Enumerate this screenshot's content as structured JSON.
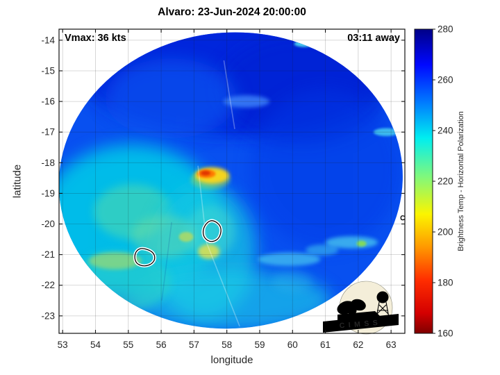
{
  "figure": {
    "title": "Alvaro: 23-Jun-2024 20:00:00",
    "annotation_left": "Vmax: 36 kts",
    "annotation_right": "03:11 away",
    "xlabel": "longitude",
    "ylabel": "latitude",
    "colorbar_label": "Brightness Temp - Horizontal Polarization",
    "logo_text": "CIMSS"
  },
  "storm": {
    "name": "Alvaro",
    "datetime": "23-Jun-2024 20:00:00",
    "vmax_kts": 36,
    "overpass_offset": "03:11 away"
  },
  "chart_data": {
    "type": "heatmap",
    "title": "Alvaro: 23-Jun-2024 20:00:00",
    "xlabel": "longitude",
    "ylabel": "latitude",
    "grid": true,
    "xlim": [
      52.89,
      63.42
    ],
    "ylim": [
      -23.57,
      -13.64
    ],
    "xticks": [
      53,
      54,
      55,
      56,
      57,
      58,
      59,
      60,
      61,
      62,
      63
    ],
    "yticks": [
      -14,
      -15,
      -16,
      -17,
      -18,
      -19,
      -20,
      -21,
      -22,
      -23
    ],
    "annotations": [
      {
        "text": "Vmax: 36 kts",
        "position": "top-left"
      },
      {
        "text": "03:11 away",
        "position": "top-right"
      }
    ],
    "colorbar": {
      "label": "Brightness Temp - Horizontal Polarization",
      "min": 160,
      "max": 280,
      "ticks": [
        160,
        180,
        200,
        220,
        240,
        260,
        280
      ],
      "colormap": "jet-reversed",
      "stops": [
        {
          "v": 280,
          "c": "#000087"
        },
        {
          "v": 266,
          "c": "#0008ff"
        },
        {
          "v": 251,
          "c": "#007cff"
        },
        {
          "v": 237,
          "c": "#00eef0"
        },
        {
          "v": 222,
          "c": "#7ef87e"
        },
        {
          "v": 207,
          "c": "#fbf500"
        },
        {
          "v": 194,
          "c": "#ff9800"
        },
        {
          "v": 181,
          "c": "#ff2d00"
        },
        {
          "v": 168,
          "c": "#d40000"
        },
        {
          "v": 160,
          "c": "#7f0000"
        }
      ]
    },
    "swath": {
      "center_lon": 58.12,
      "center_lat": -18.58,
      "radius_lon": 5.24,
      "radius_lat": 4.83,
      "tilt_deg": -5,
      "base_color": "#0850f0",
      "base_temp_K": 252
    },
    "features": [
      {
        "name": "deep-blue-top",
        "lon": 58.2,
        "lat": -15.1,
        "rx": 4.6,
        "ry": 2.0,
        "color": "#0224da",
        "opacity": 0.9,
        "soft": 4,
        "temp_K": 262
      },
      {
        "name": "deep-blue-top-right",
        "lon": 60.3,
        "lat": -15.6,
        "rx": 2.6,
        "ry": 1.8,
        "color": "#0120d2",
        "opacity": 0.6,
        "soft": 4,
        "temp_K": 264
      },
      {
        "name": "blue-upper-left",
        "lon": 56.3,
        "lat": -15.9,
        "rx": 2.0,
        "ry": 1.3,
        "color": "#0c5cf4",
        "opacity": 0.6,
        "soft": 4,
        "temp_K": 252
      },
      {
        "name": "deep-blue-right",
        "lon": 61.0,
        "lat": -18.2,
        "rx": 2.3,
        "ry": 2.6,
        "color": "#0338e6",
        "opacity": 0.5,
        "soft": 4,
        "temp_K": 258
      },
      {
        "name": "cyan-left-region",
        "lon": 55.1,
        "lat": -19.9,
        "rx": 2.8,
        "ry": 2.5,
        "color": "#00c8e8",
        "opacity": 0.9,
        "soft": 4,
        "temp_K": 238
      },
      {
        "name": "green-tint-left",
        "lon": 55.15,
        "lat": -19.6,
        "rx": 1.2,
        "ry": 0.9,
        "color": "#55dcaa",
        "opacity": 0.55,
        "soft": 3,
        "temp_K": 228
      },
      {
        "name": "cyan-center-low",
        "lon": 57.3,
        "lat": -20.9,
        "rx": 1.6,
        "ry": 2.2,
        "color": "#16c6e2",
        "opacity": 0.75,
        "soft": 4,
        "temp_K": 238
      },
      {
        "name": "greenish-mid",
        "lon": 56.1,
        "lat": -20.4,
        "rx": 1.0,
        "ry": 0.7,
        "color": "#7de09a",
        "opacity": 0.4,
        "soft": 3,
        "temp_K": 226
      },
      {
        "name": "cyan-bottom-band",
        "lon": 58.1,
        "lat": -22.5,
        "rx": 3.1,
        "ry": 1.0,
        "color": "#1ecee6",
        "opacity": 0.65,
        "soft": 4,
        "temp_K": 240
      },
      {
        "name": "cyan-bottom-left",
        "lon": 54.7,
        "lat": -21.9,
        "rx": 1.6,
        "ry": 1.0,
        "color": "#2ed0c8",
        "opacity": 0.6,
        "soft": 3,
        "temp_K": 236
      },
      {
        "name": "yellowgreen-left-streak",
        "lon": 54.6,
        "lat": -21.2,
        "rx": 0.8,
        "ry": 0.28,
        "color": "#b4dc5e",
        "opacity": 0.6,
        "soft": 2,
        "temp_K": 218
      },
      {
        "name": "yellow-dot-left-low",
        "lon": 54.66,
        "lat": -22.55,
        "rx": 0.22,
        "ry": 0.14,
        "color": "#c4dc4a",
        "opacity": 0.8,
        "soft": 1,
        "temp_K": 215
      },
      {
        "name": "cyan-near-contour",
        "lon": 57.5,
        "lat": -20.25,
        "rx": 0.75,
        "ry": 0.85,
        "color": "#48d8ce",
        "opacity": 0.5,
        "soft": 3,
        "temp_K": 232
      },
      {
        "name": "yellow-spot-mid",
        "lon": 57.45,
        "lat": -20.9,
        "rx": 0.33,
        "ry": 0.24,
        "color": "#e2e04e",
        "opacity": 0.85,
        "soft": 2,
        "temp_K": 212
      },
      {
        "name": "yellow-dot-mid",
        "lon": 56.76,
        "lat": -20.42,
        "rx": 0.22,
        "ry": 0.16,
        "color": "#c8dc50",
        "opacity": 0.7,
        "soft": 1,
        "temp_K": 215
      },
      {
        "name": "green-fringe-hotspot",
        "lon": 57.5,
        "lat": -18.55,
        "rx": 0.6,
        "ry": 0.32,
        "color": "#90dc60",
        "opacity": 0.5,
        "soft": 2,
        "temp_K": 222
      },
      {
        "name": "hotspot-yellow-halo",
        "lon": 57.55,
        "lat": -18.42,
        "rx": 0.52,
        "ry": 0.27,
        "color": "#ffd818",
        "opacity": 0.95,
        "soft": 2,
        "temp_K": 205
      },
      {
        "name": "hotspot-orange",
        "lon": 57.38,
        "lat": -18.36,
        "rx": 0.28,
        "ry": 0.14,
        "color": "#ff7a00",
        "opacity": 1,
        "soft": 1,
        "temp_K": 196
      },
      {
        "name": "hotspot-red-core",
        "lon": 57.35,
        "lat": -18.34,
        "rx": 0.15,
        "ry": 0.08,
        "color": "#e03400",
        "opacity": 1,
        "soft": 1,
        "temp_K": 186
      },
      {
        "name": "lightblue-wisp",
        "lon": 58.6,
        "lat": -16.0,
        "rx": 0.7,
        "ry": 0.2,
        "color": "#3f86fa",
        "opacity": 0.8,
        "soft": 2,
        "temp_K": 248
      },
      {
        "name": "cyan-chain-low",
        "lon": 59.9,
        "lat": -21.15,
        "rx": 0.95,
        "ry": 0.22,
        "color": "#55dff0",
        "opacity": 0.6,
        "soft": 2,
        "temp_K": 242
      },
      {
        "name": "cyan-chain-mid",
        "lon": 60.9,
        "lat": -20.85,
        "rx": 0.5,
        "ry": 0.18,
        "color": "#48d4ee",
        "opacity": 0.5,
        "soft": 2,
        "temp_K": 242
      },
      {
        "name": "cyan-chain-up",
        "lon": 61.8,
        "lat": -20.6,
        "rx": 0.8,
        "ry": 0.2,
        "color": "#55dff0",
        "opacity": 0.65,
        "soft": 2,
        "temp_K": 240
      },
      {
        "name": "green-dot-right",
        "lon": 62.1,
        "lat": -20.64,
        "rx": 0.15,
        "ry": 0.1,
        "color": "#8ae04e",
        "opacity": 0.9,
        "soft": 1,
        "temp_K": 222
      },
      {
        "name": "cyan-streak-right-edge",
        "lon": 62.85,
        "lat": -17.0,
        "rx": 0.38,
        "ry": 0.13,
        "color": "#4cd8f0",
        "opacity": 0.8,
        "soft": 1,
        "temp_K": 240
      },
      {
        "name": "cyan-streak-top-edge",
        "lon": 60.35,
        "lat": -14.12,
        "rx": 0.3,
        "ry": 0.1,
        "color": "#55e8f0",
        "opacity": 0.85,
        "soft": 1,
        "temp_K": 240
      },
      {
        "name": "faint-cyan-lower-right",
        "lon": 60.0,
        "lat": -21.9,
        "rx": 0.6,
        "ry": 0.35,
        "color": "#2fb9e9",
        "opacity": 0.35,
        "soft": 3,
        "temp_K": 246
      }
    ],
    "seams": [
      {
        "points": [
          [
            57.91,
            -14.66
          ],
          [
            58.24,
            -16.9
          ]
        ],
        "color": "rgba(255,255,255,0.30)"
      },
      {
        "points": [
          [
            57.12,
            -18.1
          ],
          [
            57.38,
            -20.6
          ],
          [
            58.39,
            -23.34
          ]
        ],
        "color": "rgba(255,255,255,0.30)"
      },
      {
        "points": [
          [
            56.32,
            -19.94
          ],
          [
            56.02,
            -22.5
          ]
        ],
        "color": "rgba(0,30,140,0.15)"
      }
    ],
    "contours": [
      {
        "name": "white-contour-1",
        "points": [
          [
            57.4,
            -19.94
          ],
          [
            57.57,
            -19.87
          ],
          [
            57.78,
            -20.01
          ],
          [
            57.84,
            -20.24
          ],
          [
            57.74,
            -20.51
          ],
          [
            57.5,
            -20.6
          ],
          [
            57.29,
            -20.44
          ],
          [
            57.27,
            -20.17
          ]
        ]
      },
      {
        "name": "white-contour-2",
        "points": [
          [
            55.26,
            -20.85
          ],
          [
            55.43,
            -20.78
          ],
          [
            55.73,
            -20.89
          ],
          [
            55.83,
            -21.1
          ],
          [
            55.73,
            -21.3
          ],
          [
            55.49,
            -21.39
          ],
          [
            55.24,
            -21.3
          ],
          [
            55.18,
            -21.05
          ]
        ]
      },
      {
        "name": "white-contour-edge",
        "points": [
          [
            63.3,
            -19.7
          ],
          [
            63.52,
            -19.8
          ],
          [
            63.3,
            -19.9
          ]
        ]
      }
    ]
  }
}
